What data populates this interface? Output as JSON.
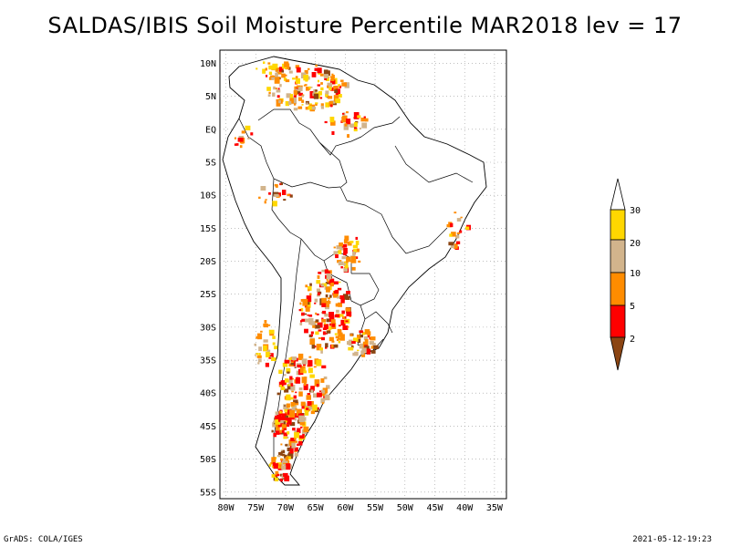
{
  "title": "SALDAS/IBIS Soil Moisture Percentile MAR2018 lev = 17",
  "map": {
    "lat_labels": [
      "10N",
      "5N",
      "EQ",
      "5S",
      "10S",
      "15S",
      "20S",
      "25S",
      "30S",
      "35S",
      "40S",
      "45S",
      "50S",
      "55S"
    ],
    "lon_labels": [
      "80W",
      "75W",
      "70W",
      "65W",
      "60W",
      "55W",
      "50W",
      "45W",
      "40W",
      "35W"
    ],
    "lon_range": [
      -81,
      -33
    ],
    "lat_range": [
      -56,
      12
    ],
    "colors": {
      "below_2": "#8b4513",
      "2_5": "#ff0000",
      "5_10": "#ff8c00",
      "10_20": "#d2b48c",
      "20_30": "#ffd700",
      "above_30": "#ffffff"
    }
  },
  "legend": {
    "labels": [
      "2",
      "5",
      "10",
      "20",
      "30"
    ],
    "colors": [
      "#8b4513",
      "#ff0000",
      "#ff8c00",
      "#d2b48c",
      "#ffd700",
      "#ffffff"
    ]
  },
  "footer": {
    "left": "GrADS: COLA/IGES",
    "right": "2021-05-12-19:23"
  }
}
